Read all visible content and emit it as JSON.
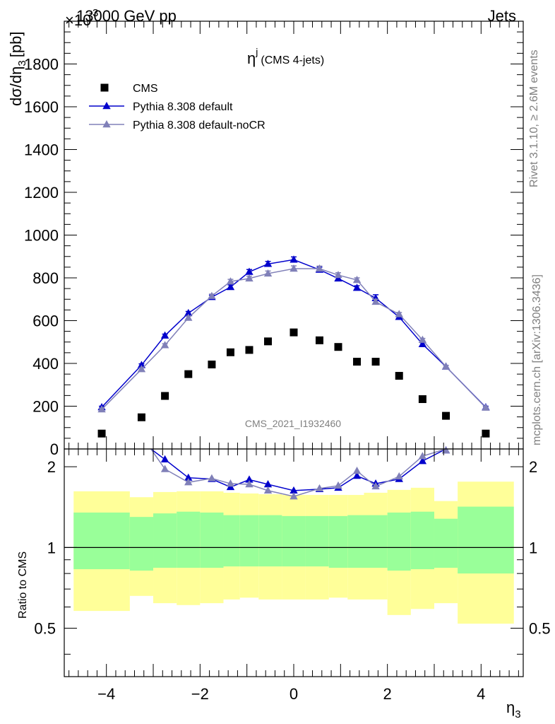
{
  "header": {
    "left": "13000 GeV pp",
    "right": "Jets",
    "exponent": "×10",
    "exponent_power": "-3"
  },
  "side_text": {
    "rivet": "Rivet 3.1.10, ≥ 2.6M events",
    "mcplots": "mcplots.cern.ch [arXiv:1306.3436]"
  },
  "watermark": "CMS_2021_I1932460",
  "chart_data": [
    {
      "type": "scatter",
      "title": "η^j (CMS 4-jets)",
      "title_main": "η",
      "title_sup": "j",
      "title_rest": "(CMS 4-jets)",
      "ylabel": "dσ/dη₃ [pb]",
      "ylabel_main": "dσ/dη",
      "ylabel_sub": "3",
      "ylabel_unit": "[pb]",
      "xlabel": "η₃",
      "xlim": [
        -4.9,
        4.9
      ],
      "ylim": [
        0,
        2000
      ],
      "y_scale_note": "values in units of 10^-3 pb",
      "yticks": [
        0,
        200,
        400,
        600,
        800,
        1000,
        1200,
        1400,
        1600,
        1800
      ],
      "legend_position": "top-left",
      "series": [
        {
          "name": "CMS",
          "color": "#000000",
          "marker": "square",
          "x": [
            -4.1,
            -3.25,
            -2.75,
            -2.25,
            -1.75,
            -1.35,
            -0.95,
            -0.55,
            0.0,
            0.55,
            0.95,
            1.35,
            1.75,
            2.25,
            2.75,
            3.25,
            4.1
          ],
          "y": [
            72,
            148,
            248,
            350,
            395,
            452,
            463,
            503,
            545,
            508,
            477,
            408,
            408,
            342,
            233,
            155,
            72
          ]
        },
        {
          "name": "Pythia 8.308 default",
          "color": "#0000cc",
          "marker": "triangle",
          "x": [
            -4.1,
            -3.25,
            -2.75,
            -2.25,
            -1.75,
            -1.35,
            -0.95,
            -0.55,
            0.0,
            0.55,
            0.95,
            1.35,
            1.75,
            2.25,
            2.75,
            3.25,
            4.1
          ],
          "y": [
            195,
            392,
            530,
            635,
            710,
            757,
            828,
            865,
            885,
            838,
            797,
            753,
            705,
            617,
            490,
            385,
            195
          ],
          "yerr": [
            5,
            6,
            7,
            8,
            9,
            10,
            11,
            12,
            13,
            12,
            11,
            10,
            16,
            8,
            7,
            6,
            5
          ]
        },
        {
          "name": "Pythia 8.308 default-noCR",
          "color": "#8080b8",
          "marker": "triangle",
          "x": [
            -4.1,
            -3.25,
            -2.75,
            -2.25,
            -1.75,
            -1.35,
            -0.95,
            -0.55,
            0.0,
            0.55,
            0.95,
            1.35,
            1.75,
            2.25,
            2.75,
            3.25,
            4.1
          ],
          "y": [
            185,
            373,
            485,
            613,
            715,
            783,
            797,
            820,
            843,
            843,
            813,
            790,
            688,
            630,
            510,
            385,
            193
          ],
          "yerr": [
            5,
            6,
            7,
            8,
            9,
            10,
            11,
            12,
            13,
            12,
            11,
            10,
            12,
            8,
            7,
            6,
            5
          ]
        }
      ]
    },
    {
      "type": "line",
      "ylabel": "Ratio to CMS",
      "xlabel": "η₃",
      "xlim": [
        -4.9,
        4.9
      ],
      "ylim": [
        0.33,
        2.33
      ],
      "yticks": [
        0.5,
        1,
        2
      ],
      "xticks": [
        -4,
        -2,
        0,
        2,
        4
      ],
      "bands": {
        "edges": [
          -4.7,
          -3.5,
          -3.0,
          -2.5,
          -2.0,
          -1.5,
          -1.15,
          -0.75,
          -0.25,
          0.25,
          0.75,
          1.15,
          1.5,
          2.0,
          2.5,
          3.0,
          3.5,
          4.7
        ],
        "stat_color": "#99ff99",
        "total_color": "#ffff99",
        "stat_low": [
          0.83,
          0.82,
          0.84,
          0.84,
          0.84,
          0.85,
          0.85,
          0.85,
          0.85,
          0.85,
          0.84,
          0.84,
          0.84,
          0.82,
          0.83,
          0.84,
          0.8
        ],
        "stat_high": [
          1.35,
          1.3,
          1.34,
          1.36,
          1.35,
          1.32,
          1.32,
          1.32,
          1.31,
          1.31,
          1.31,
          1.32,
          1.32,
          1.35,
          1.36,
          1.28,
          1.42
        ],
        "total_low": [
          0.58,
          0.66,
          0.62,
          0.61,
          0.62,
          0.64,
          0.65,
          0.64,
          0.64,
          0.64,
          0.65,
          0.64,
          0.64,
          0.56,
          0.59,
          0.62,
          0.52
        ],
        "total_high": [
          1.62,
          1.54,
          1.61,
          1.62,
          1.62,
          1.6,
          1.59,
          1.58,
          1.57,
          1.57,
          1.57,
          1.57,
          1.6,
          1.64,
          1.67,
          1.49,
          1.76
        ]
      },
      "series": [
        {
          "name": "Pythia 8.308 default",
          "color": "#0000cc",
          "x": [
            -2.75,
            -2.25,
            -1.75,
            -1.35,
            -0.95,
            -0.55,
            0.0,
            0.55,
            0.95,
            1.35,
            1.75,
            2.25,
            2.75
          ],
          "y": [
            2.13,
            1.82,
            1.8,
            1.68,
            1.79,
            1.72,
            1.63,
            1.65,
            1.67,
            1.85,
            1.73,
            1.8,
            2.1
          ]
        },
        {
          "name": "Pythia 8.308 default-noCR",
          "color": "#8080b8",
          "x": [
            -2.75,
            -2.25,
            -1.75,
            -1.35,
            -0.95,
            -0.55,
            0.0,
            0.55,
            0.95,
            1.35,
            1.75,
            2.25,
            2.75
          ],
          "y": [
            1.96,
            1.75,
            1.81,
            1.73,
            1.72,
            1.63,
            1.55,
            1.66,
            1.7,
            1.93,
            1.69,
            1.84,
            2.19
          ]
        }
      ]
    }
  ]
}
